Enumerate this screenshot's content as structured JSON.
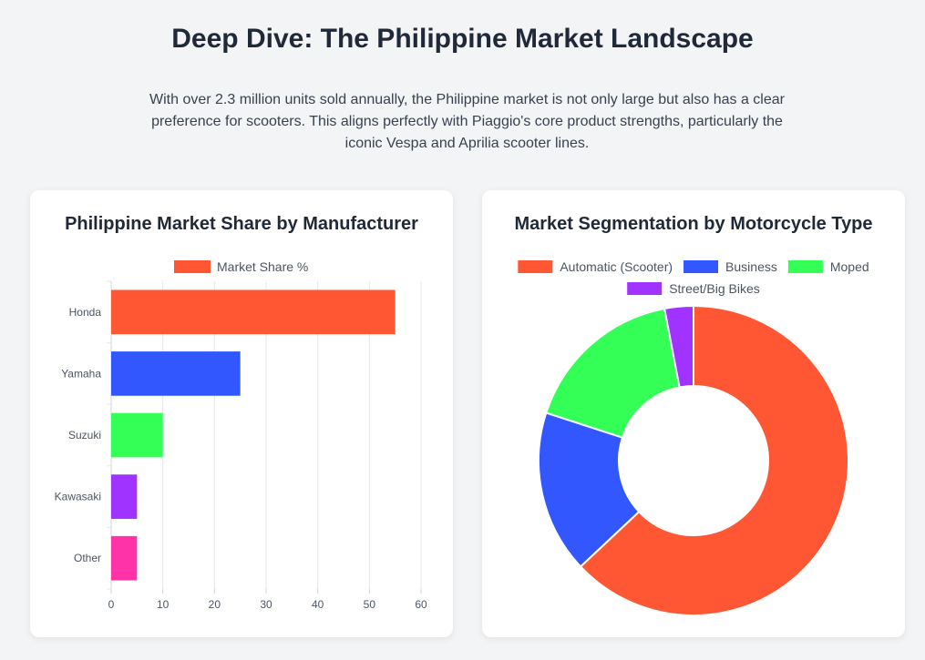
{
  "header": {
    "title": "Deep Dive: The Philippine Market Landscape",
    "intro_line1": "With over 2.3 million units sold annually, the Philippine market is not only large but also has a clear",
    "intro_line2": "preference for scooters. This aligns perfectly with Piaggio's core product strengths, particularly the",
    "intro_line3": "iconic Vespa and Aprilia scooter lines."
  },
  "chart_data": [
    {
      "type": "bar",
      "orientation": "horizontal",
      "title": "Philippine Market Share by Manufacturer",
      "categories": [
        "Honda",
        "Yamaha",
        "Suzuki",
        "Kawasaki",
        "Other"
      ],
      "series": [
        {
          "name": "Market Share %",
          "values": [
            55,
            25,
            10,
            5,
            5
          ]
        }
      ],
      "colors": [
        "#ff5733",
        "#3357ff",
        "#33ff57",
        "#a033ff",
        "#ff33a8"
      ],
      "legend_color": "#ff5733",
      "xlim": [
        0,
        60
      ],
      "xticks": [
        0,
        10,
        20,
        30,
        40,
        50,
        60
      ],
      "grid": true,
      "legend": "top"
    },
    {
      "type": "pie",
      "variant": "doughnut",
      "title": "Market Segmentation by Motorcycle Type",
      "labels": [
        "Automatic (Scooter)",
        "Business",
        "Moped",
        "Street/Big Bikes"
      ],
      "values": [
        63,
        17,
        17,
        3
      ],
      "colors": [
        "#ff5733",
        "#3357ff",
        "#33ff57",
        "#a033ff"
      ],
      "legend": "top"
    }
  ]
}
